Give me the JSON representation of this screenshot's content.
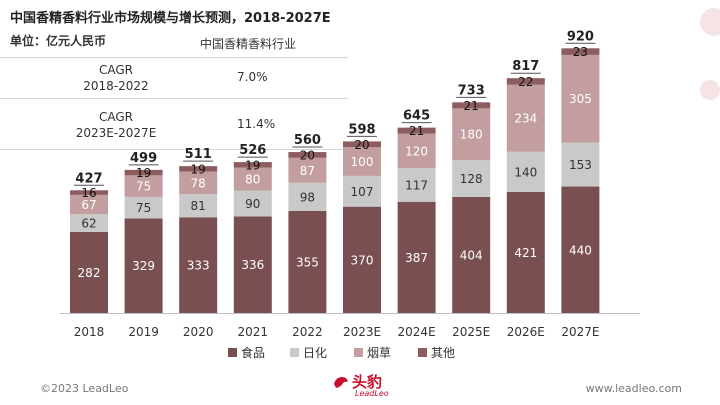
{
  "header": {
    "title": "中国香精香料行业市场规模与增长预测，2018-2027E",
    "unit": "单位：亿元人民币"
  },
  "cagr_table": {
    "header": "中国香精香料行业",
    "rows": [
      {
        "label_line1": "CAGR",
        "label_line2": "2018-2022",
        "value": "7.0%"
      },
      {
        "label_line1": "CAGR",
        "label_line2": "2023E-2027E",
        "value": "11.4%"
      }
    ]
  },
  "footer": {
    "copyright": "©2023 LeadLeo",
    "website": "www.leadleo.com",
    "logo_text": "头豹",
    "logo_sub": "LeadLeo"
  },
  "colors": {
    "food": "#7a4f52",
    "daily": "#c9c9c9",
    "tobacco": "#c39ea0",
    "other": "#8c5c5f",
    "brand": "#c8102e"
  },
  "chart_data": {
    "type": "bar",
    "stacked": true,
    "categories": [
      "2018",
      "2019",
      "2020",
      "2021",
      "2022",
      "2023E",
      "2024E",
      "2025E",
      "2026E",
      "2027E"
    ],
    "series": [
      {
        "name": "食品",
        "values": [
          282,
          329,
          333,
          336,
          355,
          370,
          387,
          404,
          421,
          440
        ]
      },
      {
        "name": "日化",
        "values": [
          62,
          75,
          81,
          90,
          98,
          107,
          117,
          128,
          140,
          153
        ]
      },
      {
        "name": "烟草",
        "values": [
          67,
          75,
          78,
          80,
          87,
          100,
          120,
          180,
          234,
          305
        ]
      },
      {
        "name": "其他",
        "values": [
          16,
          19,
          19,
          19,
          20,
          20,
          21,
          21,
          22,
          23
        ]
      }
    ],
    "totals": [
      427,
      499,
      511,
      526,
      560,
      598,
      645,
      733,
      817,
      920
    ],
    "legend_position": "bottom",
    "grid": false
  }
}
